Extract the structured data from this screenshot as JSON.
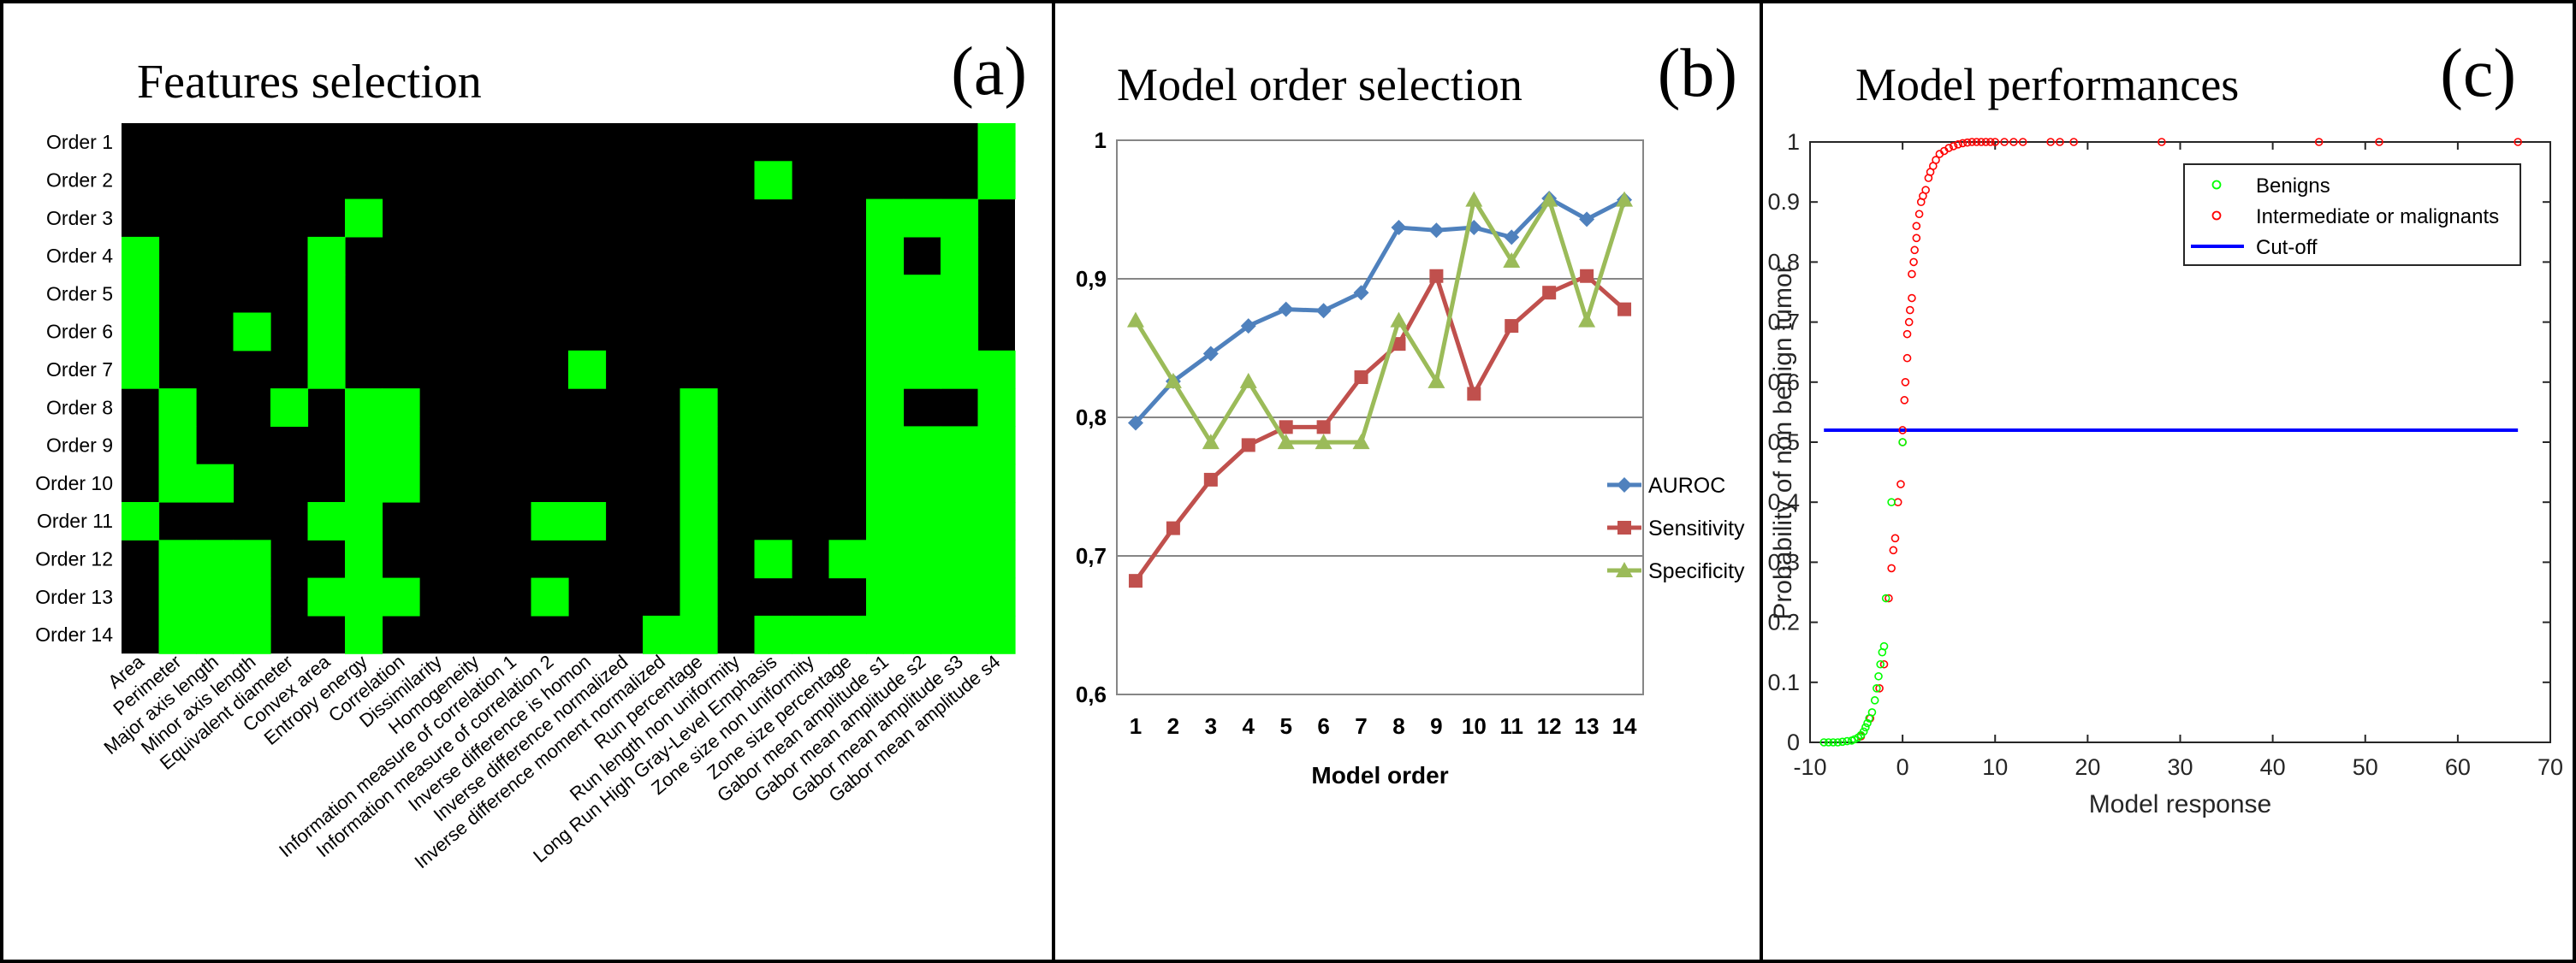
{
  "panels": {
    "a": {
      "title": "Features selection",
      "letter": "(a)"
    },
    "b": {
      "title": "Model order selection",
      "letter": "(b)"
    },
    "c": {
      "title": "Model performances",
      "letter": "(c)"
    }
  },
  "colors": {
    "selected": "#00ff00",
    "unselected": "#000000",
    "auroc": "#4f81bd",
    "sensitivity": "#c0504d",
    "specificity": "#9bbb59",
    "benign": "#00ff00",
    "malignant": "#ff0000",
    "cutoff": "#0000ff"
  },
  "chart_data": [
    {
      "type": "heatmap",
      "title": "Features selection",
      "rows": [
        "Order 1",
        "Order 2",
        "Order 3",
        "Order 4",
        "Order 5",
        "Order 6",
        "Order 7",
        "Order 8",
        "Order 9",
        "Order 10",
        "Order 11",
        "Order 12",
        "Order 13",
        "Order 14"
      ],
      "columns": [
        "Area",
        "Perimeter",
        "Major axis length",
        "Minor axis length",
        "Equivalent diameter",
        "Convex area",
        "Entropy energy",
        "Correlation",
        "Dissimilarity",
        "Homogeneity",
        "Information measure of correlation 1",
        "Information measure of correlation 2",
        "Inverse difference is homon",
        "Inverse difference normalized",
        "Inverse difference moment normalized",
        "Run percentage",
        "Run length non uniformity",
        "Long Run High Gray-Level Emphasis",
        "Zone size non uniformity",
        "Zone size percentage",
        "Gabor mean amplitude s1",
        "Gabor mean amplitude s2",
        "Gabor mean amplitude s3",
        "Gabor mean amplitude s4"
      ],
      "values": [
        [
          0,
          0,
          0,
          0,
          0,
          0,
          0,
          0,
          0,
          0,
          0,
          0,
          0,
          0,
          0,
          0,
          0,
          0,
          0,
          0,
          0,
          0,
          0,
          1
        ],
        [
          0,
          0,
          0,
          0,
          0,
          0,
          0,
          0,
          0,
          0,
          0,
          0,
          0,
          0,
          0,
          0,
          0,
          1,
          0,
          0,
          0,
          0,
          0,
          1
        ],
        [
          0,
          0,
          0,
          0,
          0,
          0,
          1,
          0,
          0,
          0,
          0,
          0,
          0,
          0,
          0,
          0,
          0,
          0,
          0,
          0,
          1,
          1,
          1,
          0
        ],
        [
          1,
          0,
          0,
          0,
          0,
          1,
          0,
          0,
          0,
          0,
          0,
          0,
          0,
          0,
          0,
          0,
          0,
          0,
          0,
          0,
          1,
          0,
          1,
          0
        ],
        [
          1,
          0,
          0,
          0,
          0,
          1,
          0,
          0,
          0,
          0,
          0,
          0,
          0,
          0,
          0,
          0,
          0,
          0,
          0,
          0,
          1,
          1,
          1,
          0
        ],
        [
          1,
          0,
          0,
          1,
          0,
          1,
          0,
          0,
          0,
          0,
          0,
          0,
          0,
          0,
          0,
          0,
          0,
          0,
          0,
          0,
          1,
          1,
          1,
          0
        ],
        [
          1,
          0,
          0,
          0,
          0,
          1,
          0,
          0,
          0,
          0,
          0,
          0,
          1,
          0,
          0,
          0,
          0,
          0,
          0,
          0,
          1,
          1,
          1,
          1
        ],
        [
          0,
          1,
          0,
          0,
          1,
          0,
          1,
          1,
          0,
          0,
          0,
          0,
          0,
          0,
          0,
          1,
          0,
          0,
          0,
          0,
          1,
          0,
          0,
          1
        ],
        [
          0,
          1,
          0,
          0,
          0,
          0,
          1,
          1,
          0,
          0,
          0,
          0,
          0,
          0,
          0,
          1,
          0,
          0,
          0,
          0,
          1,
          1,
          1,
          1
        ],
        [
          0,
          1,
          1,
          0,
          0,
          0,
          1,
          1,
          0,
          0,
          0,
          0,
          0,
          0,
          0,
          1,
          0,
          0,
          0,
          0,
          1,
          1,
          1,
          1
        ],
        [
          1,
          0,
          0,
          0,
          0,
          1,
          1,
          0,
          0,
          0,
          0,
          1,
          1,
          0,
          0,
          1,
          0,
          0,
          0,
          0,
          1,
          1,
          1,
          1
        ],
        [
          0,
          1,
          1,
          1,
          0,
          0,
          1,
          0,
          0,
          0,
          0,
          0,
          0,
          0,
          0,
          1,
          0,
          1,
          0,
          1,
          1,
          1,
          1,
          1
        ],
        [
          0,
          1,
          1,
          1,
          0,
          1,
          1,
          1,
          0,
          0,
          0,
          1,
          0,
          0,
          0,
          1,
          0,
          0,
          0,
          0,
          1,
          1,
          1,
          1
        ],
        [
          0,
          1,
          1,
          1,
          0,
          0,
          1,
          0,
          0,
          0,
          0,
          0,
          0,
          0,
          1,
          1,
          0,
          1,
          1,
          1,
          1,
          1,
          1,
          1
        ]
      ]
    },
    {
      "type": "line",
      "title": "Model order selection",
      "xlabel": "Model order",
      "x": [
        1,
        2,
        3,
        4,
        5,
        6,
        7,
        8,
        9,
        10,
        11,
        12,
        13,
        14
      ],
      "ylim": [
        0.6,
        1
      ],
      "yticks": [
        "0,6",
        "0,7",
        "0,8",
        "0,9",
        "1"
      ],
      "grid": true,
      "legend": "right",
      "series": [
        {
          "name": "AUROC",
          "values": [
            0.796,
            0.826,
            0.846,
            0.866,
            0.878,
            0.877,
            0.89,
            0.937,
            0.935,
            0.937,
            0.93,
            0.958,
            0.943,
            0.957
          ]
        },
        {
          "name": "Sensitivity",
          "values": [
            0.682,
            0.72,
            0.755,
            0.78,
            0.793,
            0.793,
            0.829,
            0.853,
            0.902,
            0.817,
            0.866,
            0.89,
            0.902,
            0.878
          ]
        },
        {
          "name": "Specificity",
          "values": [
            0.87,
            0.826,
            0.782,
            0.826,
            0.782,
            0.782,
            0.782,
            0.87,
            0.826,
            0.957,
            0.913,
            0.957,
            0.87,
            0.957
          ]
        }
      ]
    },
    {
      "type": "scatter",
      "title": "Model performances",
      "xlabel": "Model response",
      "ylabel": "Probability of non benign tumor",
      "xlim": [
        -10,
        70
      ],
      "ylim": [
        0,
        1
      ],
      "xticks": [
        -10,
        0,
        10,
        20,
        30,
        40,
        50,
        60,
        70
      ],
      "yticks": [
        0,
        0.1,
        0.2,
        0.3,
        0.4,
        0.5,
        0.6,
        0.7,
        0.8,
        0.9,
        1
      ],
      "legend": "top-right",
      "series": [
        {
          "name": "Benigns",
          "points": [
            [
              -8.5,
              0.0
            ],
            [
              -8.0,
              0.0
            ],
            [
              -7.5,
              0.0
            ],
            [
              -7.0,
              0.0
            ],
            [
              -6.5,
              0.001
            ],
            [
              -6.0,
              0.002
            ],
            [
              -5.5,
              0.003
            ],
            [
              -5.2,
              0.005
            ],
            [
              -4.8,
              0.008
            ],
            [
              -4.5,
              0.012
            ],
            [
              -4.2,
              0.018
            ],
            [
              -4.0,
              0.025
            ],
            [
              -3.8,
              0.032
            ],
            [
              -3.6,
              0.04
            ],
            [
              -3.3,
              0.05
            ],
            [
              -3.0,
              0.07
            ],
            [
              -2.8,
              0.09
            ],
            [
              -2.6,
              0.11
            ],
            [
              -2.4,
              0.13
            ],
            [
              -2.2,
              0.15
            ],
            [
              -2.0,
              0.16
            ],
            [
              -1.8,
              0.24
            ],
            [
              -1.2,
              0.4
            ],
            [
              0.0,
              0.5
            ]
          ]
        },
        {
          "name": "Intermediate or malignants",
          "points": [
            [
              -4.5,
              0.01
            ],
            [
              -3.5,
              0.04
            ],
            [
              -2.5,
              0.09
            ],
            [
              -2.0,
              0.13
            ],
            [
              -1.5,
              0.24
            ],
            [
              -1.2,
              0.29
            ],
            [
              -1.0,
              0.32
            ],
            [
              -0.8,
              0.34
            ],
            [
              -0.5,
              0.4
            ],
            [
              -0.2,
              0.43
            ],
            [
              0.0,
              0.5
            ],
            [
              0.0,
              0.52
            ],
            [
              0.2,
              0.57
            ],
            [
              0.3,
              0.6
            ],
            [
              0.5,
              0.64
            ],
            [
              0.5,
              0.68
            ],
            [
              0.7,
              0.7
            ],
            [
              0.8,
              0.72
            ],
            [
              1.0,
              0.74
            ],
            [
              1.0,
              0.78
            ],
            [
              1.2,
              0.8
            ],
            [
              1.3,
              0.82
            ],
            [
              1.5,
              0.84
            ],
            [
              1.5,
              0.86
            ],
            [
              1.8,
              0.88
            ],
            [
              2.0,
              0.9
            ],
            [
              2.2,
              0.91
            ],
            [
              2.5,
              0.92
            ],
            [
              2.8,
              0.94
            ],
            [
              3.0,
              0.95
            ],
            [
              3.3,
              0.96
            ],
            [
              3.6,
              0.97
            ],
            [
              4.0,
              0.98
            ],
            [
              4.5,
              0.985
            ],
            [
              5.0,
              0.99
            ],
            [
              5.5,
              0.993
            ],
            [
              6.0,
              0.996
            ],
            [
              6.5,
              0.998
            ],
            [
              7.0,
              0.999
            ],
            [
              7.5,
              1.0
            ],
            [
              8.0,
              1.0
            ],
            [
              8.5,
              1.0
            ],
            [
              9.0,
              1.0
            ],
            [
              9.5,
              1.0
            ],
            [
              10.0,
              1.0
            ],
            [
              11.0,
              1.0
            ],
            [
              12.0,
              1.0
            ],
            [
              13.0,
              1.0
            ],
            [
              16.0,
              1.0
            ],
            [
              17.0,
              1.0
            ],
            [
              18.5,
              1.0
            ],
            [
              28.0,
              1.0
            ],
            [
              45.0,
              1.0
            ],
            [
              51.5,
              1.0
            ],
            [
              66.5,
              1.0
            ]
          ]
        },
        {
          "name": "Cut-off",
          "line_y": 0.52,
          "line_x": [
            -8.5,
            66.5
          ]
        }
      ]
    }
  ]
}
